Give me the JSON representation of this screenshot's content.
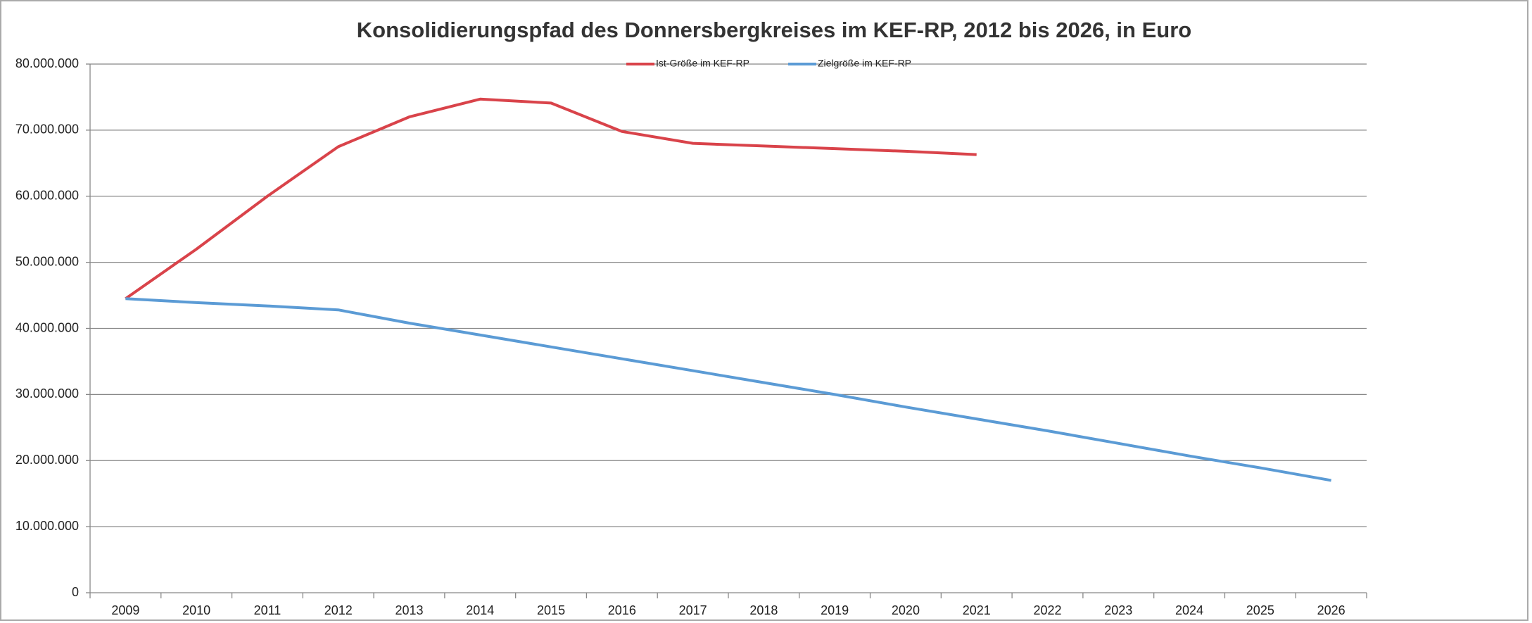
{
  "chart_data": {
    "type": "line",
    "title": "Konsolidierungspfad des Donnersbergkreises im KEF-RP, 2012 bis 2026, in Euro",
    "categories": [
      "2009",
      "2010",
      "2011",
      "2012",
      "2013",
      "2014",
      "2015",
      "2016",
      "2017",
      "2018",
      "2019",
      "2020",
      "2021",
      "2022",
      "2023",
      "2024",
      "2025",
      "2026"
    ],
    "series": [
      {
        "name": "Ist-Größe im KEF-RP",
        "color": "#d9434a",
        "values": [
          44500000,
          52000000,
          60000000,
          67500000,
          72000000,
          74700000,
          74100000,
          69800000,
          68000000,
          67600000,
          67200000,
          66800000,
          66300000,
          null,
          null,
          null,
          null,
          null
        ]
      },
      {
        "name": "Zielgröße im KEF-RP",
        "color": "#5b9bd5",
        "values": [
          44500000,
          43900000,
          43400000,
          42800000,
          40800000,
          39000000,
          37200000,
          35400000,
          33600000,
          31800000,
          30000000,
          28100000,
          26300000,
          24500000,
          22600000,
          20700000,
          18900000,
          17000000
        ]
      }
    ],
    "ylim": [
      0,
      80000000
    ],
    "yticks": [
      0,
      {
        "value": 10000000,
        "label": "10.000.000"
      },
      {
        "value": 20000000,
        "label": "20.000.000"
      },
      {
        "value": 30000000,
        "label": "30.000.000"
      },
      {
        "value": 40000000,
        "label": "40.000.000"
      },
      {
        "value": 50000000,
        "label": "50.000.000"
      },
      {
        "value": 60000000,
        "label": "60.000.000"
      },
      {
        "value": 70000000,
        "label": "70.000.000"
      },
      {
        "value": 80000000,
        "label": "80.000.000"
      }
    ],
    "grid": true,
    "legend": "top"
  }
}
